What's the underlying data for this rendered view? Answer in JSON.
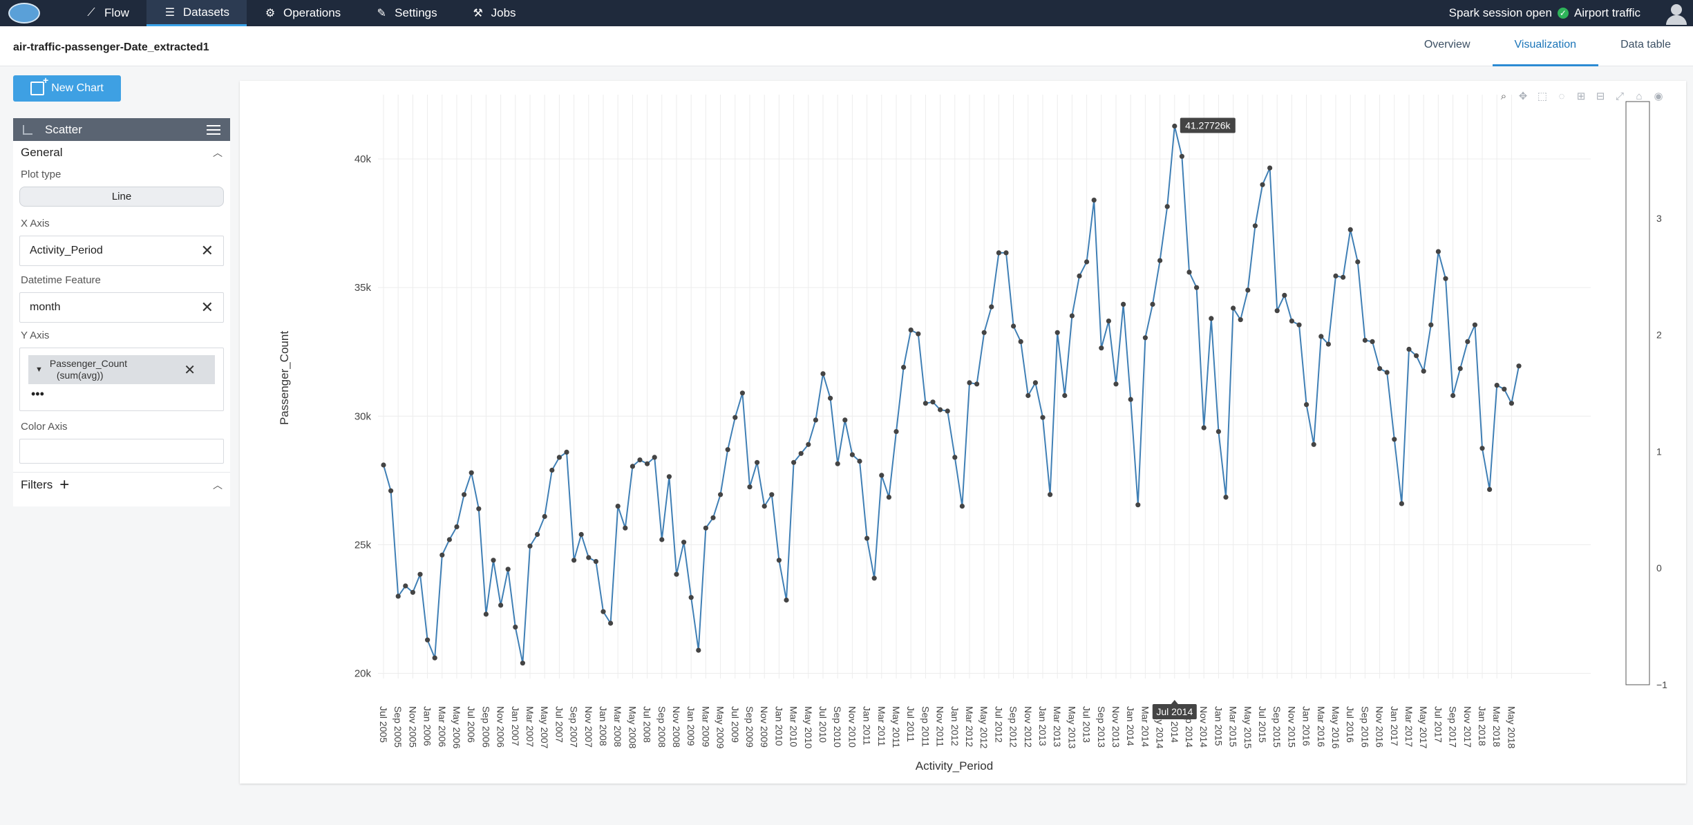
{
  "nav": {
    "logo_text": "",
    "items": [
      {
        "label": "Flow",
        "icon": "trend-icon",
        "glyph": "⟋"
      },
      {
        "label": "Datasets",
        "icon": "list-icon",
        "glyph": "☰",
        "active": true
      },
      {
        "label": "Operations",
        "icon": "gear-icon",
        "glyph": "⚙"
      },
      {
        "label": "Settings",
        "icon": "wrench-icon",
        "glyph": "✎"
      },
      {
        "label": "Jobs",
        "icon": "jobs-icon",
        "glyph": "⚒"
      }
    ],
    "session_status": "Spark session open",
    "project": "Airport traffic"
  },
  "header": {
    "dataset_title": "air-traffic-passenger-Date_extracted1",
    "tabs": [
      {
        "label": "Overview"
      },
      {
        "label": "Visualization",
        "active": true
      },
      {
        "label": "Data table"
      }
    ]
  },
  "sidebar": {
    "new_chart_label": "New Chart",
    "chart_type": "Scatter",
    "general_label": "General",
    "plot_type_label": "Plot type",
    "plot_type_value": "Line",
    "x_axis_label": "X Axis",
    "x_axis_value": "Activity_Period",
    "datetime_label": "Datetime Feature",
    "datetime_value": "month",
    "y_axis_label": "Y Axis",
    "y_axis_chip_line1": "Passenger_Count",
    "y_axis_chip_line2": "(sum(avg))",
    "more_label": "•••",
    "color_axis_label": "Color Axis",
    "filters_label": "Filters"
  },
  "chart_data": {
    "type": "line",
    "xlabel": "Activity_Period",
    "ylabel": "Passenger_Count",
    "ylim": [
      19800,
      42500
    ],
    "yticks": [
      20000,
      25000,
      30000,
      35000,
      40000
    ],
    "ytick_labels": [
      "20k",
      "25k",
      "30k",
      "35k",
      "40k"
    ],
    "colorbar_ticks": [
      -1,
      0,
      1,
      2,
      3
    ],
    "colorbar_ylim": [
      -1,
      4
    ],
    "start": "Jul 2005",
    "tick_labels": [
      "Jul 2005",
      "Sep 2005",
      "Nov 2005",
      "Jan 2006",
      "Mar 2006",
      "May 2006",
      "Jul 2006",
      "Sep 2006",
      "Nov 2006",
      "Jan 2007",
      "Mar 2007",
      "May 2007",
      "Jul 2007",
      "Sep 2007",
      "Nov 2007",
      "Jan 2008",
      "Mar 2008",
      "May 2008",
      "Jul 2008",
      "Sep 2008",
      "Nov 2008",
      "Jan 2009",
      "Mar 2009",
      "May 2009",
      "Jul 2009",
      "Sep 2009",
      "Nov 2009",
      "Jan 2010",
      "Mar 2010",
      "May 2010",
      "Jul 2010",
      "Sep 2010",
      "Nov 2010",
      "Jan 2011",
      "Mar 2011",
      "May 2011",
      "Jul 2011",
      "Sep 2011",
      "Nov 2011",
      "Jan 2012",
      "Mar 2012",
      "May 2012",
      "Jul 2012",
      "Sep 2012",
      "Nov 2012",
      "Jan 2013",
      "Mar 2013",
      "May 2013",
      "Jul 2013",
      "Sep 2013",
      "Nov 2013",
      "Jan 2014",
      "Mar 2014",
      "May 2014",
      "Jul 2014",
      "Sep 2014",
      "Nov 2014",
      "Jan 2015",
      "Mar 2015",
      "May 2015",
      "Jul 2015",
      "Sep 2015",
      "Nov 2015",
      "Jan 2016",
      "Mar 2016",
      "May 2016",
      "Jul 2016",
      "Sep 2016",
      "Nov 2016",
      "Jan 2017",
      "Mar 2017",
      "May 2017",
      "Jul 2017",
      "Sep 2017",
      "Nov 2017",
      "Jan 2018",
      "Mar 2018",
      "May 2018"
    ],
    "values": [
      28100,
      27100,
      23000,
      23400,
      23150,
      23850,
      21300,
      20600,
      24600,
      25200,
      25700,
      26950,
      27800,
      26400,
      22300,
      24400,
      22650,
      24050,
      21800,
      20400,
      24950,
      25400,
      26100,
      27900,
      28400,
      28600,
      24400,
      25400,
      24500,
      24350,
      22400,
      21950,
      26500,
      25650,
      28050,
      28300,
      28150,
      28400,
      25200,
      27650,
      23850,
      25100,
      22950,
      20900,
      25650,
      26050,
      26950,
      28700,
      29950,
      30900,
      27250,
      28200,
      26500,
      26950,
      24400,
      22850,
      28200,
      28550,
      28900,
      29850,
      31650,
      30700,
      28150,
      29850,
      28500,
      28250,
      25250,
      23700,
      27700,
      26850,
      29400,
      31900,
      33350,
      33200,
      30500,
      30550,
      30250,
      30200,
      28400,
      26500,
      31300,
      31250,
      33250,
      34250,
      36350,
      36350,
      33500,
      32900,
      30800,
      31300,
      29950,
      26950,
      33250,
      30800,
      33900,
      35450,
      36000,
      38400,
      32650,
      33700,
      31250,
      34350,
      30650,
      26550,
      33050,
      34350,
      36050,
      38150,
      41277,
      40100,
      35600,
      35000,
      29550,
      33800,
      29400,
      26850,
      34200,
      33750,
      34900,
      37400,
      39000,
      39650,
      34100,
      34700,
      33700,
      33550,
      30450,
      28900,
      33100,
      32800,
      35450,
      35400,
      37250,
      36000,
      32950,
      32900,
      31850,
      31700,
      29100,
      26600,
      32600,
      32350,
      31750,
      33550,
      36400,
      35350,
      30800,
      31850,
      32900,
      33550,
      28750,
      27150,
      31200,
      31050,
      30500,
      31950
    ],
    "tooltip_label": "41.27726k",
    "hover_x_label": "Jul 2014",
    "hover_index": 108
  }
}
